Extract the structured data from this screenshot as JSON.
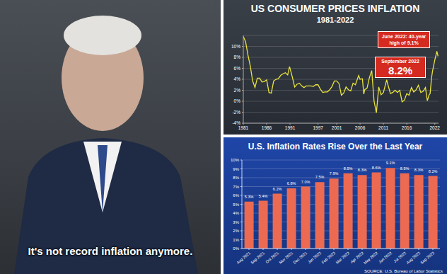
{
  "caption": "It's not record inflation anymore.",
  "chart_data": [
    {
      "type": "line",
      "title": "US CONSUMER PRICES INFLATION",
      "subtitle": "1981-2022",
      "x": [
        1981.0,
        1981.5,
        1982.0,
        1982.5,
        1983.0,
        1983.5,
        1984.0,
        1984.5,
        1985.0,
        1985.5,
        1986.0,
        1986.5,
        1987.0,
        1987.5,
        1988.0,
        1988.5,
        1989.0,
        1989.5,
        1990.0,
        1990.5,
        1990.9,
        1991.5,
        1992.0,
        1992.5,
        1993.0,
        1993.5,
        1994.0,
        1994.5,
        1995.0,
        1995.5,
        1996.0,
        1996.5,
        1997.0,
        1997.5,
        1998.0,
        1998.5,
        1999.0,
        1999.5,
        2000.0,
        2000.5,
        2001.0,
        2001.5,
        2002.0,
        2002.5,
        2003.0,
        2003.5,
        2004.0,
        2004.5,
        2005.0,
        2005.7,
        2006.0,
        2006.5,
        2006.8,
        2007.0,
        2007.5,
        2008.0,
        2008.5,
        2008.9,
        2009.0,
        2009.5,
        2010.0,
        2010.5,
        2011.0,
        2011.7,
        2012.0,
        2012.5,
        2013.0,
        2013.5,
        2014.0,
        2014.5,
        2015.0,
        2015.5,
        2016.0,
        2016.5,
        2017.0,
        2017.5,
        2018.0,
        2018.5,
        2019.0,
        2019.5,
        2020.0,
        2020.4,
        2020.8,
        2021.0,
        2021.3,
        2021.5,
        2022.0,
        2022.45,
        2022.7
      ],
      "values": [
        11.8,
        10.8,
        8.4,
        6.4,
        3.7,
        2.5,
        4.2,
        4.2,
        3.5,
        3.6,
        3.9,
        1.6,
        1.5,
        3.7,
        4.0,
        4.1,
        4.7,
        5.0,
        5.2,
        4.8,
        6.3,
        4.4,
        2.6,
        3.1,
        3.3,
        2.8,
        2.5,
        2.8,
        2.8,
        2.8,
        2.7,
        3.0,
        3.0,
        2.2,
        1.6,
        1.7,
        1.7,
        2.1,
        2.7,
        3.7,
        3.7,
        3.2,
        1.1,
        1.5,
        2.6,
        2.1,
        1.9,
        3.3,
        3.0,
        4.7,
        4.0,
        4.1,
        1.3,
        2.1,
        2.4,
        4.3,
        5.6,
        1.1,
        0.0,
        -2.1,
        2.6,
        1.2,
        1.6,
        3.9,
        2.9,
        1.4,
        1.6,
        2.0,
        1.6,
        2.0,
        -0.1,
        0.2,
        1.4,
        1.1,
        2.5,
        1.7,
        2.1,
        2.9,
        1.6,
        1.8,
        2.5,
        0.1,
        1.2,
        1.4,
        4.2,
        5.4,
        7.5,
        9.1,
        8.2
      ],
      "color": "#e9e43c",
      "xlim": [
        1981,
        2022.8
      ],
      "xticks": [
        1981,
        1986,
        1991,
        1997,
        2001,
        2006,
        2011,
        2016,
        2022
      ],
      "ylim": [
        -4,
        12
      ],
      "yticks": [
        {
          "value": -4,
          "label": "-4%"
        },
        {
          "value": -2,
          "label": "-2%"
        },
        {
          "value": 0,
          "label": "0%"
        },
        {
          "value": 2,
          "label": "2%"
        },
        {
          "value": 4,
          "label": "4%"
        },
        {
          "value": 6,
          "label": "6%"
        },
        {
          "value": 8,
          "label": "8%"
        },
        {
          "value": 10,
          "label": "10%"
        }
      ],
      "grid": true,
      "annotations": [
        "June 2022: 40-year high of 9.1%",
        "September 2022",
        "8.2%"
      ]
    },
    {
      "type": "bar",
      "title": "U.S. Inflation Rates Rise Over the Last Year",
      "source": "SOURCE: U.S. Bureau of Labor Statistics",
      "categories": [
        "Aug 2021",
        "Sep 2021",
        "Oct 2021",
        "Nov 2021",
        "Dec 2021",
        "Jan 2022",
        "Feb 2022",
        "Mar 2022",
        "Apr 2022",
        "May 2022",
        "Jun 2022",
        "Jul 2022",
        "Aug 2022",
        "Sep 2022"
      ],
      "values": [
        5.3,
        5.4,
        6.2,
        6.8,
        7.0,
        7.5,
        7.9,
        8.5,
        8.3,
        8.6,
        9.1,
        8.5,
        8.3,
        8.2
      ],
      "value_labels": [
        "5.3%",
        "5.4%",
        "6.2%",
        "6.8%",
        "7.0%",
        "7.5%",
        "7.9%",
        "8.5%",
        "8.3%",
        "8.6%",
        "9.1%",
        "8.5%",
        "8.3%",
        "8.2%"
      ],
      "data_labels": true,
      "color": "#ec6a52",
      "ylim": [
        0,
        10
      ],
      "yticks": [
        {
          "value": 0,
          "label": "0%"
        },
        {
          "value": 1,
          "label": "1%"
        },
        {
          "value": 2,
          "label": "2%"
        },
        {
          "value": 3,
          "label": "3%"
        },
        {
          "value": 4,
          "label": "4%"
        },
        {
          "value": 5,
          "label": "5%"
        },
        {
          "value": 6,
          "label": "6%"
        },
        {
          "value": 7,
          "label": "7%"
        },
        {
          "value": 8,
          "label": "8%"
        },
        {
          "value": 9,
          "label": "9%"
        },
        {
          "value": 10,
          "label": "10%"
        }
      ],
      "grid": true
    }
  ]
}
